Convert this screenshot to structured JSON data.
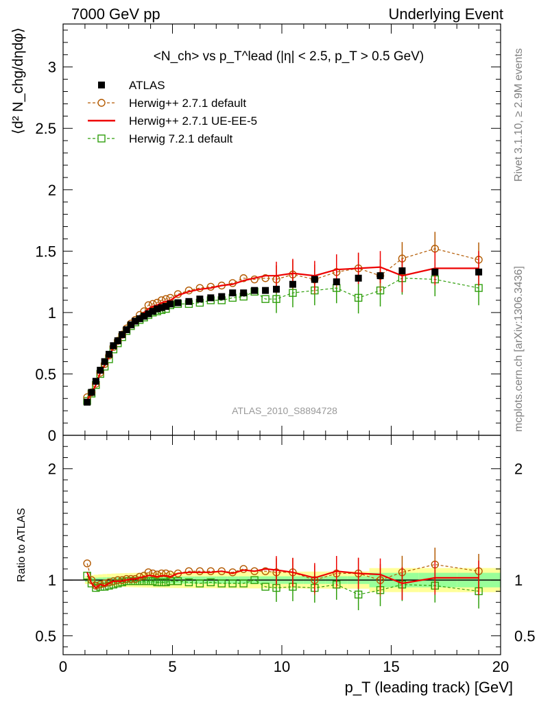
{
  "header": {
    "left": "7000 GeV pp",
    "right": "Underlying Event"
  },
  "side_labels": {
    "rivet": "Rivet 3.1.10, ≥ 2.9M events",
    "mcplots": "mcplots.cern.ch [arXiv:1306.3436]"
  },
  "watermark": "ATLAS_2010_S8894728",
  "colors": {
    "data": "#000000",
    "herwigpp_default": "#b35900",
    "herwigpp_ueee5": "#ee0000",
    "herwig7": "#2e9e0b",
    "band_inner": "#99ff99",
    "band_outer": "#ffff99"
  },
  "chart_data": [
    {
      "type": "scatter",
      "title": "<N_ch> vs p_T^lead (|η| < 2.5, p_T > 0.5 GeV)",
      "xlabel": "p_T (leading track) [GeV]",
      "ylabel": "⟨d² N_chg/dηdφ⟩",
      "xlim": [
        0,
        20
      ],
      "ylim": [
        0,
        3.35
      ],
      "x_ticks": [
        "0",
        "5",
        "10",
        "15",
        "20"
      ],
      "y_ticks": [
        "0",
        "0.5",
        "1",
        "1.5",
        "2",
        "2.5",
        "3"
      ],
      "legend_position": "top-left",
      "x": [
        1.1,
        1.3,
        1.5,
        1.7,
        1.9,
        2.1,
        2.3,
        2.5,
        2.7,
        2.9,
        3.1,
        3.3,
        3.5,
        3.7,
        3.9,
        4.1,
        4.3,
        4.5,
        4.7,
        4.9,
        5.25,
        5.75,
        6.25,
        6.75,
        7.25,
        7.75,
        8.25,
        8.75,
        9.25,
        9.75,
        10.5,
        11.5,
        12.5,
        13.5,
        14.5,
        15.5,
        17.0,
        19.0
      ],
      "series": [
        {
          "name": "ATLAS",
          "style": "markers",
          "values": [
            0.27,
            0.35,
            0.44,
            0.53,
            0.6,
            0.66,
            0.73,
            0.77,
            0.82,
            0.86,
            0.9,
            0.93,
            0.95,
            0.97,
            0.99,
            1.01,
            1.03,
            1.04,
            1.05,
            1.07,
            1.08,
            1.09,
            1.11,
            1.12,
            1.13,
            1.16,
            1.16,
            1.18,
            1.18,
            1.19,
            1.23,
            1.27,
            1.25,
            1.28,
            1.3,
            1.34,
            1.33,
            1.33
          ]
        },
        {
          "name": "Herwig++ 2.7.1 default",
          "style": "dashed-circles",
          "values": [
            0.31,
            0.35,
            0.42,
            0.51,
            0.58,
            0.65,
            0.72,
            0.77,
            0.82,
            0.87,
            0.91,
            0.94,
            0.98,
            1.01,
            1.06,
            1.07,
            1.08,
            1.1,
            1.11,
            1.12,
            1.15,
            1.18,
            1.2,
            1.21,
            1.22,
            1.24,
            1.28,
            1.27,
            1.28,
            1.27,
            1.31,
            1.27,
            1.33,
            1.36,
            1.3,
            1.44,
            1.52,
            1.43
          ]
        },
        {
          "name": "Herwig++ 2.7.1 UE-EE-5",
          "style": "solid-line",
          "values": [
            0.29,
            0.34,
            0.41,
            0.51,
            0.57,
            0.64,
            0.72,
            0.76,
            0.81,
            0.86,
            0.91,
            0.94,
            0.97,
            1.0,
            1.03,
            1.05,
            1.06,
            1.08,
            1.09,
            1.1,
            1.14,
            1.17,
            1.19,
            1.2,
            1.22,
            1.23,
            1.26,
            1.28,
            1.3,
            1.3,
            1.32,
            1.3,
            1.35,
            1.36,
            1.37,
            1.3,
            1.36,
            1.36
          ]
        },
        {
          "name": "Herwig 7.2.1 default",
          "style": "dashed-squares",
          "values": [
            0.28,
            0.34,
            0.41,
            0.5,
            0.56,
            0.62,
            0.7,
            0.75,
            0.8,
            0.85,
            0.89,
            0.92,
            0.94,
            0.96,
            0.98,
            1.0,
            1.01,
            1.02,
            1.03,
            1.06,
            1.07,
            1.07,
            1.08,
            1.1,
            1.1,
            1.12,
            1.13,
            1.17,
            1.11,
            1.11,
            1.16,
            1.18,
            1.2,
            1.12,
            1.18,
            1.28,
            1.27,
            1.2
          ]
        }
      ]
    },
    {
      "type": "line",
      "ylabel": "Ratio to ATLAS",
      "xlabel": "p_T (leading track) [GeV]",
      "xlim": [
        0,
        20
      ],
      "ylim": [
        0.33,
        2.3
      ],
      "y_ticks": [
        "0.5",
        "1",
        "2"
      ],
      "reference_line": 1,
      "x": [
        1.1,
        1.3,
        1.5,
        1.7,
        1.9,
        2.1,
        2.3,
        2.5,
        2.7,
        2.9,
        3.1,
        3.3,
        3.5,
        3.7,
        3.9,
        4.1,
        4.3,
        4.5,
        4.7,
        4.9,
        5.25,
        5.75,
        6.25,
        6.75,
        7.25,
        7.75,
        8.25,
        8.75,
        9.25,
        9.75,
        10.5,
        11.5,
        12.5,
        13.5,
        14.5,
        15.5,
        17.0,
        19.0
      ],
      "series": [
        {
          "name": "Herwig++ 2.7.1 default",
          "values": [
            1.15,
            1.0,
            0.95,
            0.96,
            0.97,
            0.98,
            0.99,
            1.0,
            1.0,
            1.01,
            1.01,
            1.01,
            1.03,
            1.04,
            1.07,
            1.06,
            1.05,
            1.06,
            1.06,
            1.05,
            1.06,
            1.08,
            1.08,
            1.08,
            1.08,
            1.07,
            1.1,
            1.08,
            1.08,
            1.07,
            1.07,
            1.0,
            1.06,
            1.06,
            1.0,
            1.07,
            1.14,
            1.08
          ]
        },
        {
          "name": "Herwig++ 2.7.1 UE-EE-5",
          "values": [
            1.07,
            0.97,
            0.93,
            0.96,
            0.95,
            0.97,
            0.99,
            0.99,
            0.99,
            1.0,
            1.01,
            1.01,
            1.02,
            1.03,
            1.04,
            1.04,
            1.03,
            1.04,
            1.04,
            1.03,
            1.06,
            1.07,
            1.07,
            1.07,
            1.08,
            1.06,
            1.09,
            1.08,
            1.1,
            1.09,
            1.07,
            1.02,
            1.08,
            1.06,
            1.05,
            0.97,
            1.02,
            1.02
          ]
        },
        {
          "name": "Herwig 7.2.1 default",
          "values": [
            1.04,
            0.97,
            0.93,
            0.94,
            0.94,
            0.95,
            0.96,
            0.97,
            0.98,
            0.99,
            0.99,
            0.99,
            0.99,
            0.99,
            0.99,
            0.99,
            0.98,
            0.98,
            0.98,
            0.99,
            0.99,
            0.98,
            0.97,
            0.98,
            0.97,
            0.97,
            0.97,
            1.0,
            0.94,
            0.93,
            0.94,
            0.93,
            0.96,
            0.87,
            0.91,
            0.96,
            0.95,
            0.9
          ]
        }
      ]
    }
  ]
}
